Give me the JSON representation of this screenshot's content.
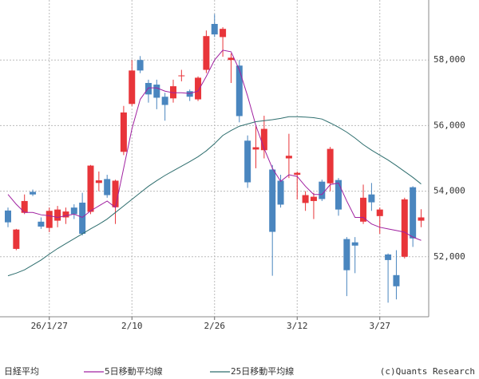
{
  "chart_data": {
    "type": "candlestick",
    "name": "日経平均",
    "categories": [
      null,
      null,
      null,
      null,
      null,
      "26/1/27",
      null,
      null,
      null,
      null,
      null,
      null,
      null,
      null,
      null,
      "2/10",
      null,
      null,
      null,
      null,
      null,
      null,
      null,
      null,
      null,
      "2/26",
      null,
      null,
      null,
      null,
      null,
      null,
      null,
      null,
      null,
      "3/12",
      null,
      null,
      null,
      null,
      null,
      null,
      null,
      null,
      null,
      "3/27",
      null,
      null,
      null,
      null,
      null
    ],
    "open": [
      53410,
      52240,
      53340,
      53980,
      53070,
      52880,
      53100,
      53200,
      53500,
      53650,
      53370,
      54250,
      54370,
      53510,
      55200,
      56660,
      58000,
      57300,
      57250,
      56880,
      56830,
      57510,
      57050,
      56800,
      57700,
      59100,
      58700,
      58000,
      57830,
      55540,
      55270,
      55250,
      54660,
      54320,
      55000,
      54500,
      53640,
      53700,
      54290,
      54240,
      54340,
      52540,
      52440,
      53070,
      53900,
      53240,
      52070,
      51440,
      52000,
      54120,
      53100
    ],
    "high": [
      53500,
      52850,
      53900,
      54050,
      53200,
      53500,
      53550,
      53500,
      53600,
      53950,
      54800,
      54600,
      54500,
      54350,
      56600,
      58000,
      58120,
      57400,
      57400,
      57000,
      57400,
      57700,
      57100,
      57500,
      58900,
      59400,
      59000,
      58200,
      58000,
      55700,
      56000,
      56300,
      54800,
      54500,
      55750,
      54600,
      54000,
      53950,
      54350,
      55350,
      54400,
      52600,
      52600,
      54200,
      54250,
      53500,
      52100,
      52200,
      53800,
      54150,
      53450
    ],
    "low": [
      52900,
      52200,
      53300,
      53850,
      52850,
      52750,
      52900,
      53000,
      53150,
      52650,
      53300,
      54000,
      53800,
      53000,
      55100,
      56600,
      57600,
      56700,
      56500,
      56150,
      56700,
      57350,
      56750,
      56750,
      57600,
      58700,
      58100,
      57300,
      56100,
      54100,
      54700,
      55000,
      51420,
      53500,
      54400,
      53750,
      53400,
      53150,
      53700,
      54000,
      53250,
      50800,
      51500,
      53000,
      53400,
      52700,
      50600,
      50700,
      51950,
      52300,
      52900
    ],
    "close": [
      53050,
      52830,
      53700,
      53900,
      52920,
      53400,
      53440,
      53380,
      53300,
      52700,
      54780,
      54330,
      53880,
      54320,
      56400,
      57680,
      57680,
      56950,
      56850,
      56630,
      57200,
      57530,
      56880,
      57460,
      58730,
      58780,
      58950,
      58070,
      56290,
      54270,
      55340,
      55900,
      52760,
      53590,
      55080,
      54560,
      53880,
      53830,
      53760,
      55290,
      53440,
      51590,
      52340,
      53800,
      53660,
      53440,
      51900,
      51100,
      53750,
      52560,
      53200
    ],
    "up_color": "#e8353a",
    "down_color": "#4a86bf",
    "series": [
      {
        "name": "5日移動平均線",
        "color": "#a020a0",
        "values": [
          53900,
          53600,
          53350,
          53350,
          53280,
          53250,
          53200,
          53250,
          53300,
          53200,
          53400,
          53550,
          53700,
          53500,
          54700,
          55900,
          56800,
          57150,
          57150,
          57050,
          57000,
          57000,
          56980,
          57050,
          57500,
          58000,
          58300,
          58250,
          57700,
          56900,
          56000,
          55300,
          54700,
          54300,
          54500,
          54450,
          54150,
          53900,
          53900,
          54200,
          54250,
          53700,
          53200,
          53200,
          53000,
          52900,
          52850,
          52800,
          52750,
          52600,
          52500
        ]
      },
      {
        "name": "25日移動平均線",
        "color": "#2e6e6e",
        "values": [
          51420,
          51500,
          51600,
          51750,
          51900,
          52080,
          52250,
          52400,
          52550,
          52700,
          52850,
          52990,
          53150,
          53350,
          53550,
          53750,
          53950,
          54150,
          54320,
          54480,
          54620,
          54760,
          54900,
          55050,
          55230,
          55450,
          55700,
          55850,
          55980,
          56050,
          56120,
          56150,
          56180,
          56220,
          56270,
          56270,
          56260,
          56240,
          56200,
          56080,
          55950,
          55800,
          55620,
          55420,
          55250,
          55100,
          54950,
          54780,
          54600,
          54420,
          54220
        ]
      }
    ],
    "ylim": [
      50170,
      59830
    ],
    "yticks": [
      {
        "value": 52000,
        "label": "52,000"
      },
      {
        "value": 54000,
        "label": "54,000"
      },
      {
        "value": 56000,
        "label": "56,000"
      },
      {
        "value": 58000,
        "label": "58,000"
      }
    ],
    "y_axis_side": "right",
    "grid": true,
    "source": "(c)Quants Research"
  }
}
